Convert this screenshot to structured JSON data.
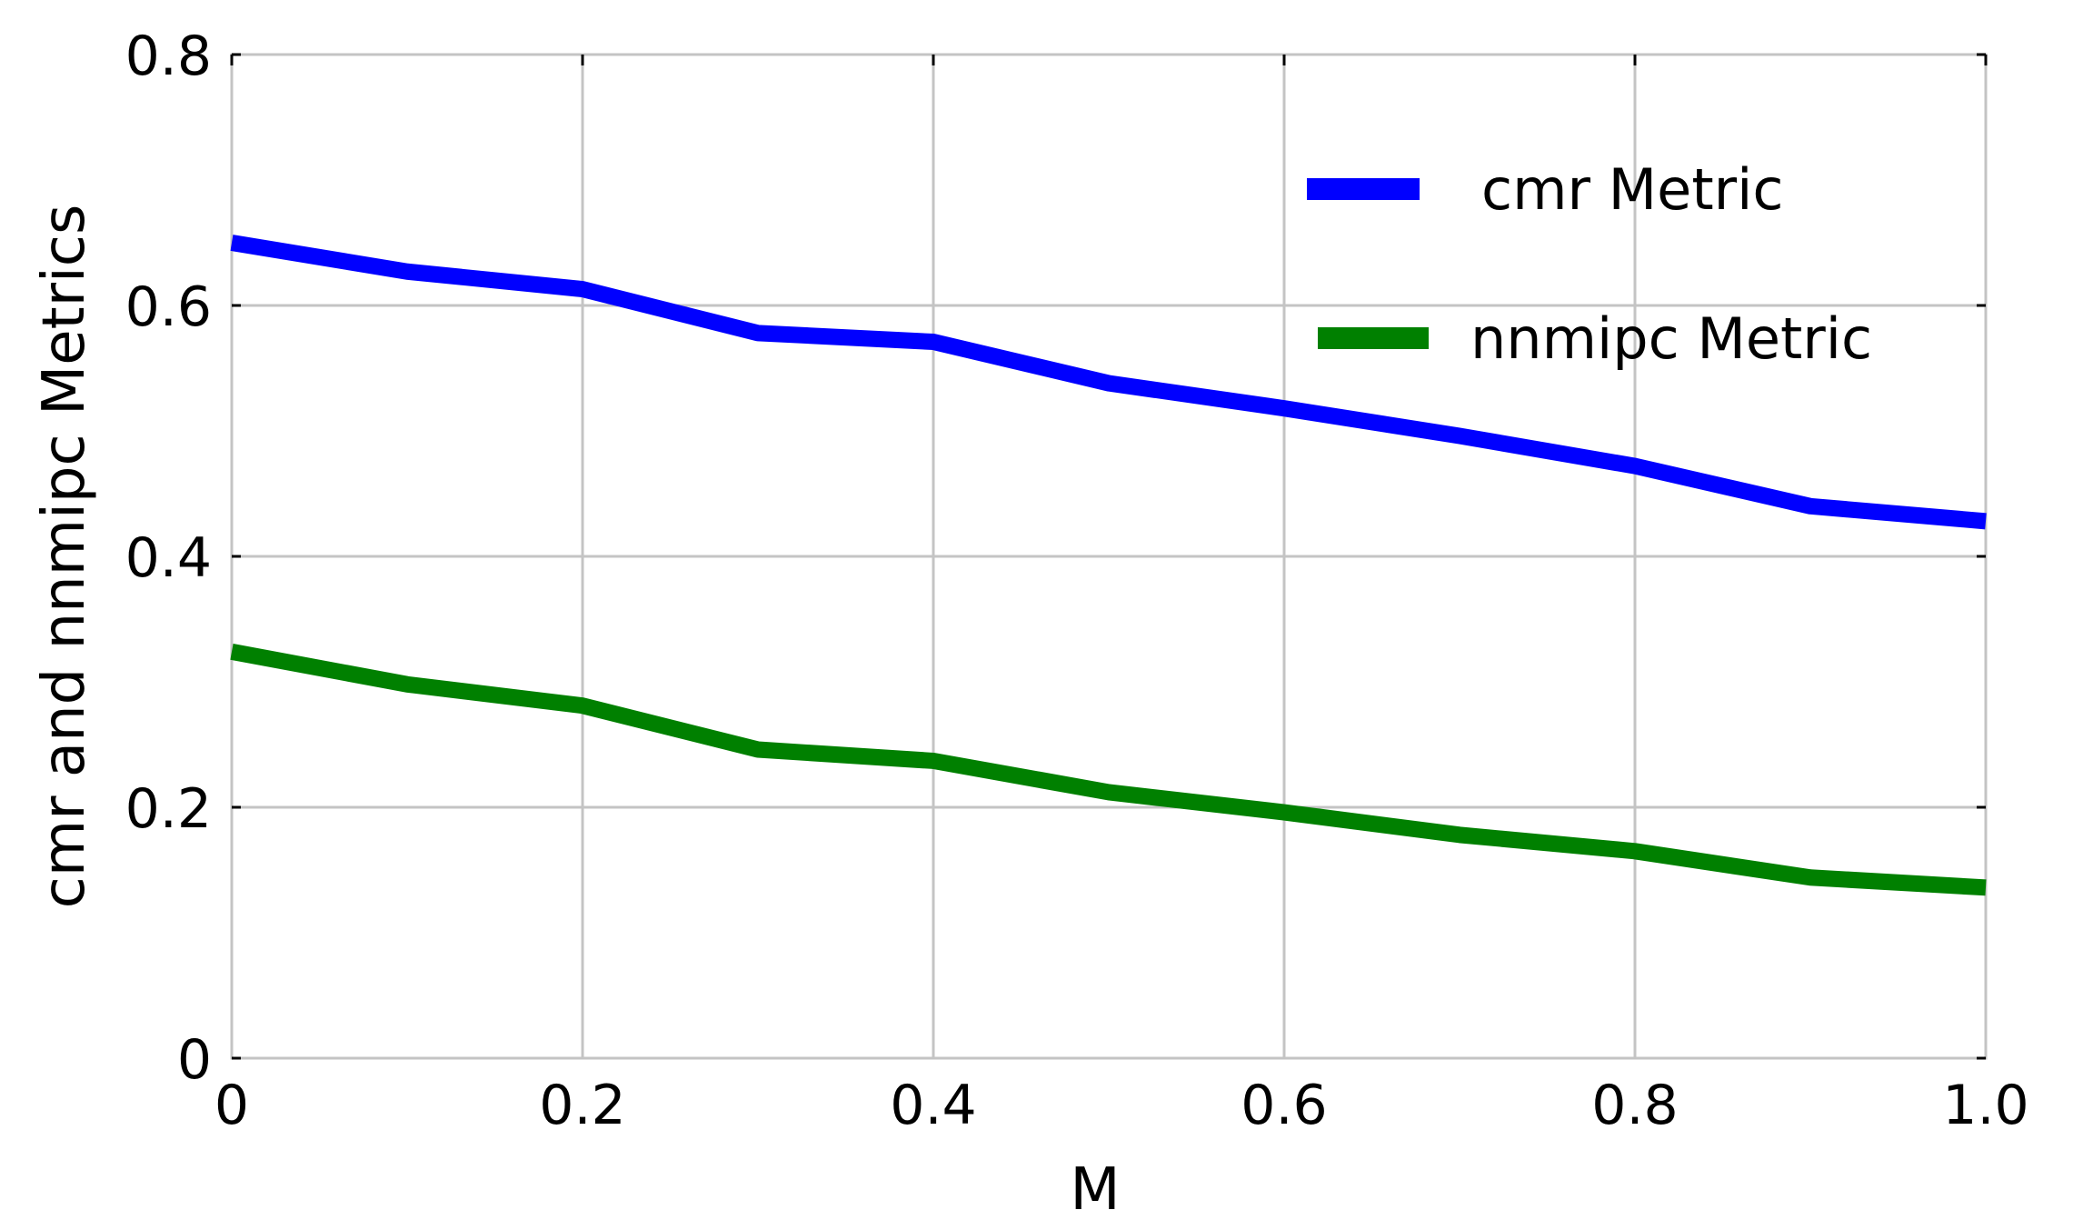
{
  "chart_data": {
    "type": "line",
    "title": "",
    "xlabel": "M",
    "ylabel": "cmr and nnmipc Metrics",
    "xlim": [
      0,
      1.0
    ],
    "ylim": [
      0,
      0.8
    ],
    "x_ticks": [
      0,
      0.2,
      0.4,
      0.6,
      0.8,
      1.0
    ],
    "x_tick_labels": [
      "0",
      "0.2",
      "0.4",
      "0.6",
      "0.8",
      "1.0"
    ],
    "y_ticks": [
      0,
      0.2,
      0.4,
      0.6,
      0.8
    ],
    "y_tick_labels": [
      "0",
      "0.2",
      "0.4",
      "0.6",
      "0.8"
    ],
    "grid": true,
    "legend_position": "top-right",
    "x": [
      0,
      0.1,
      0.2,
      0.3,
      0.4,
      0.5,
      0.6,
      0.7,
      0.8,
      0.9,
      1.0
    ],
    "series": [
      {
        "name": "cmr Metric",
        "color": "#0000ff",
        "values": [
          0.65,
          0.627,
          0.613,
          0.578,
          0.571,
          0.538,
          0.518,
          0.496,
          0.472,
          0.44,
          0.428
        ]
      },
      {
        "name": "nnmipc Metric",
        "color": "#008000",
        "values": [
          0.324,
          0.298,
          0.281,
          0.246,
          0.237,
          0.212,
          0.196,
          0.178,
          0.165,
          0.144,
          0.136
        ]
      }
    ]
  }
}
